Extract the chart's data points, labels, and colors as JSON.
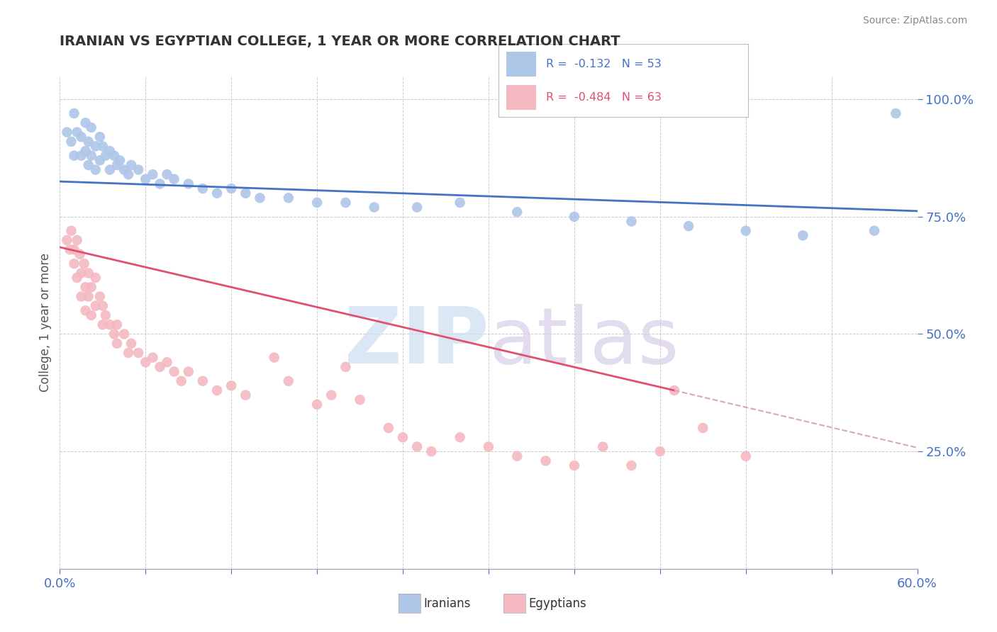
{
  "title": "IRANIAN VS EGYPTIAN COLLEGE, 1 YEAR OR MORE CORRELATION CHART",
  "source_text": "Source: ZipAtlas.com",
  "ylabel": "College, 1 year or more",
  "xlim": [
    0.0,
    0.6
  ],
  "ylim": [
    0.0,
    1.05
  ],
  "y_ticks": [
    0.25,
    0.5,
    0.75,
    1.0
  ],
  "y_tick_labels": [
    "25.0%",
    "50.0%",
    "75.0%",
    "100.0%"
  ],
  "blue_scatter": [
    [
      0.005,
      0.93
    ],
    [
      0.008,
      0.91
    ],
    [
      0.01,
      0.97
    ],
    [
      0.01,
      0.88
    ],
    [
      0.012,
      0.93
    ],
    [
      0.015,
      0.92
    ],
    [
      0.015,
      0.88
    ],
    [
      0.018,
      0.95
    ],
    [
      0.018,
      0.89
    ],
    [
      0.02,
      0.91
    ],
    [
      0.02,
      0.86
    ],
    [
      0.022,
      0.94
    ],
    [
      0.022,
      0.88
    ],
    [
      0.025,
      0.9
    ],
    [
      0.025,
      0.85
    ],
    [
      0.028,
      0.92
    ],
    [
      0.028,
      0.87
    ],
    [
      0.03,
      0.9
    ],
    [
      0.032,
      0.88
    ],
    [
      0.035,
      0.89
    ],
    [
      0.035,
      0.85
    ],
    [
      0.038,
      0.88
    ],
    [
      0.04,
      0.86
    ],
    [
      0.042,
      0.87
    ],
    [
      0.045,
      0.85
    ],
    [
      0.048,
      0.84
    ],
    [
      0.05,
      0.86
    ],
    [
      0.055,
      0.85
    ],
    [
      0.06,
      0.83
    ],
    [
      0.065,
      0.84
    ],
    [
      0.07,
      0.82
    ],
    [
      0.075,
      0.84
    ],
    [
      0.08,
      0.83
    ],
    [
      0.09,
      0.82
    ],
    [
      0.1,
      0.81
    ],
    [
      0.11,
      0.8
    ],
    [
      0.12,
      0.81
    ],
    [
      0.13,
      0.8
    ],
    [
      0.14,
      0.79
    ],
    [
      0.16,
      0.79
    ],
    [
      0.18,
      0.78
    ],
    [
      0.2,
      0.78
    ],
    [
      0.22,
      0.77
    ],
    [
      0.25,
      0.77
    ],
    [
      0.28,
      0.78
    ],
    [
      0.32,
      0.76
    ],
    [
      0.36,
      0.75
    ],
    [
      0.4,
      0.74
    ],
    [
      0.44,
      0.73
    ],
    [
      0.48,
      0.72
    ],
    [
      0.52,
      0.71
    ],
    [
      0.57,
      0.72
    ],
    [
      0.585,
      0.97
    ]
  ],
  "pink_scatter": [
    [
      0.005,
      0.7
    ],
    [
      0.007,
      0.68
    ],
    [
      0.008,
      0.72
    ],
    [
      0.01,
      0.68
    ],
    [
      0.01,
      0.65
    ],
    [
      0.012,
      0.7
    ],
    [
      0.012,
      0.62
    ],
    [
      0.014,
      0.67
    ],
    [
      0.015,
      0.63
    ],
    [
      0.015,
      0.58
    ],
    [
      0.017,
      0.65
    ],
    [
      0.018,
      0.6
    ],
    [
      0.018,
      0.55
    ],
    [
      0.02,
      0.63
    ],
    [
      0.02,
      0.58
    ],
    [
      0.022,
      0.6
    ],
    [
      0.022,
      0.54
    ],
    [
      0.025,
      0.62
    ],
    [
      0.025,
      0.56
    ],
    [
      0.028,
      0.58
    ],
    [
      0.03,
      0.56
    ],
    [
      0.03,
      0.52
    ],
    [
      0.032,
      0.54
    ],
    [
      0.035,
      0.52
    ],
    [
      0.038,
      0.5
    ],
    [
      0.04,
      0.52
    ],
    [
      0.04,
      0.48
    ],
    [
      0.045,
      0.5
    ],
    [
      0.048,
      0.46
    ],
    [
      0.05,
      0.48
    ],
    [
      0.055,
      0.46
    ],
    [
      0.06,
      0.44
    ],
    [
      0.065,
      0.45
    ],
    [
      0.07,
      0.43
    ],
    [
      0.075,
      0.44
    ],
    [
      0.08,
      0.42
    ],
    [
      0.085,
      0.4
    ],
    [
      0.09,
      0.42
    ],
    [
      0.1,
      0.4
    ],
    [
      0.11,
      0.38
    ],
    [
      0.12,
      0.39
    ],
    [
      0.13,
      0.37
    ],
    [
      0.15,
      0.45
    ],
    [
      0.16,
      0.4
    ],
    [
      0.18,
      0.35
    ],
    [
      0.19,
      0.37
    ],
    [
      0.2,
      0.43
    ],
    [
      0.21,
      0.36
    ],
    [
      0.23,
      0.3
    ],
    [
      0.24,
      0.28
    ],
    [
      0.25,
      0.26
    ],
    [
      0.26,
      0.25
    ],
    [
      0.28,
      0.28
    ],
    [
      0.3,
      0.26
    ],
    [
      0.32,
      0.24
    ],
    [
      0.34,
      0.23
    ],
    [
      0.36,
      0.22
    ],
    [
      0.38,
      0.26
    ],
    [
      0.4,
      0.22
    ],
    [
      0.42,
      0.25
    ],
    [
      0.43,
      0.38
    ],
    [
      0.45,
      0.3
    ],
    [
      0.48,
      0.24
    ]
  ],
  "blue_line": {
    "x0": 0.0,
    "x1": 0.6,
    "y0": 0.825,
    "y1": 0.762
  },
  "pink_line_solid": {
    "x0": 0.0,
    "x1": 0.43,
    "y0": 0.685,
    "y1": 0.38
  },
  "pink_line_dashed": {
    "x0": 0.43,
    "x1": 0.6,
    "y0": 0.38,
    "y1": 0.258
  },
  "scatter_color_blue": "#aec6e8",
  "scatter_color_pink": "#f4b8c1",
  "line_color_blue": "#4472c4",
  "line_color_pink": "#e05070",
  "dashed_color": "#d8a8b8",
  "legend_blue_text": "R =  -0.132   N = 53",
  "legend_pink_text": "R =  -0.484   N = 63",
  "legend_blue_color": "#4472c4",
  "legend_pink_color": "#e05070",
  "watermark_zip_color": "#ccddf0",
  "watermark_atlas_color": "#d8cce8",
  "background_color": "#ffffff",
  "grid_color": "#cccccc",
  "axis_label_color": "#4472c4",
  "title_color": "#333333",
  "label_text_color": "#555555"
}
